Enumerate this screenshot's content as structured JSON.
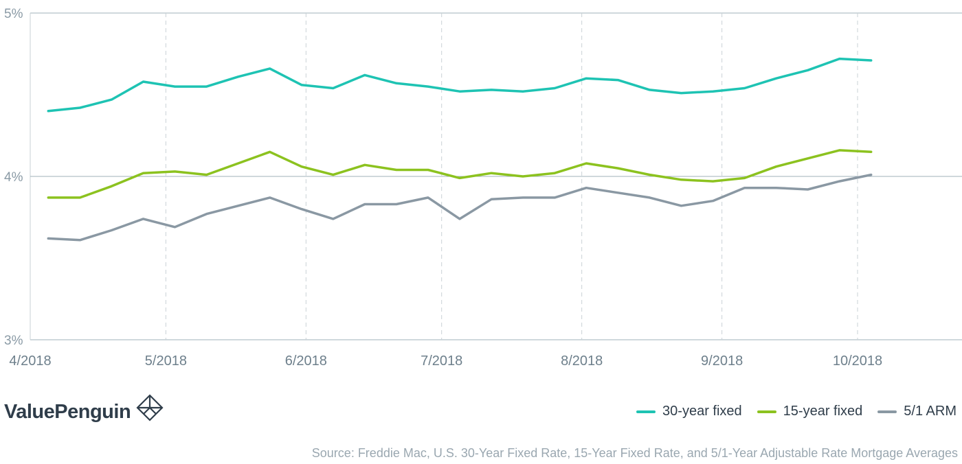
{
  "chart_data": {
    "type": "line",
    "x": [
      "4/5/2018",
      "4/12/2018",
      "4/19/2018",
      "4/26/2018",
      "5/3/2018",
      "5/10/2018",
      "5/17/2018",
      "5/24/2018",
      "5/31/2018",
      "6/7/2018",
      "6/14/2018",
      "6/21/2018",
      "6/28/2018",
      "7/5/2018",
      "7/12/2018",
      "7/19/2018",
      "7/26/2018",
      "8/2/2018",
      "8/9/2018",
      "8/16/2018",
      "8/23/2018",
      "8/30/2018",
      "9/6/2018",
      "9/13/2018",
      "9/20/2018",
      "9/27/2018",
      "10/4/2018"
    ],
    "x_tick_labels": [
      "4/2018",
      "5/2018",
      "6/2018",
      "7/2018",
      "8/2018",
      "9/2018",
      "10/2018"
    ],
    "y_tick_labels": [
      "5%",
      "4%",
      "3%"
    ],
    "y_ticks": [
      5,
      4,
      3
    ],
    "ylim": [
      3,
      5
    ],
    "series": [
      {
        "name": "30-year fixed",
        "color": "#1ec3b3",
        "values": [
          4.4,
          4.42,
          4.47,
          4.58,
          4.55,
          4.55,
          4.61,
          4.66,
          4.56,
          4.54,
          4.62,
          4.57,
          4.55,
          4.52,
          4.53,
          4.52,
          4.54,
          4.6,
          4.59,
          4.53,
          4.51,
          4.52,
          4.54,
          4.6,
          4.65,
          4.72,
          4.71
        ]
      },
      {
        "name": "15-year fixed",
        "color": "#8cc21f",
        "values": [
          3.87,
          3.87,
          3.94,
          4.02,
          4.03,
          4.01,
          4.08,
          4.15,
          4.06,
          4.01,
          4.07,
          4.04,
          4.04,
          3.99,
          4.02,
          4.0,
          4.02,
          4.08,
          4.05,
          4.01,
          3.98,
          3.97,
          3.99,
          4.06,
          4.11,
          4.16,
          4.15
        ]
      },
      {
        "name": "5/1 ARM",
        "color": "#8a98a3",
        "values": [
          3.62,
          3.61,
          3.67,
          3.74,
          3.69,
          3.77,
          3.82,
          3.87,
          3.8,
          3.74,
          3.83,
          3.83,
          3.87,
          3.74,
          3.86,
          3.87,
          3.87,
          3.93,
          3.9,
          3.87,
          3.82,
          3.85,
          3.93,
          3.93,
          3.92,
          3.97,
          4.01
        ]
      }
    ],
    "grid": true,
    "legend_position": "bottom-right"
  },
  "branding": {
    "name": "ValuePenguin",
    "logo_icon": "valuepenguin-logo-icon"
  },
  "legend": [
    {
      "label": "30-year fixed",
      "color": "#1ec3b3"
    },
    {
      "label": "15-year fixed",
      "color": "#8cc21f"
    },
    {
      "label": "5/1 ARM",
      "color": "#8a98a3"
    }
  ],
  "source": "Source: Freddie Mac, U.S. 30-Year Fixed Rate, 15-Year Fixed Rate, and 5/1-Year Adjustable Rate Mortgage Averages"
}
